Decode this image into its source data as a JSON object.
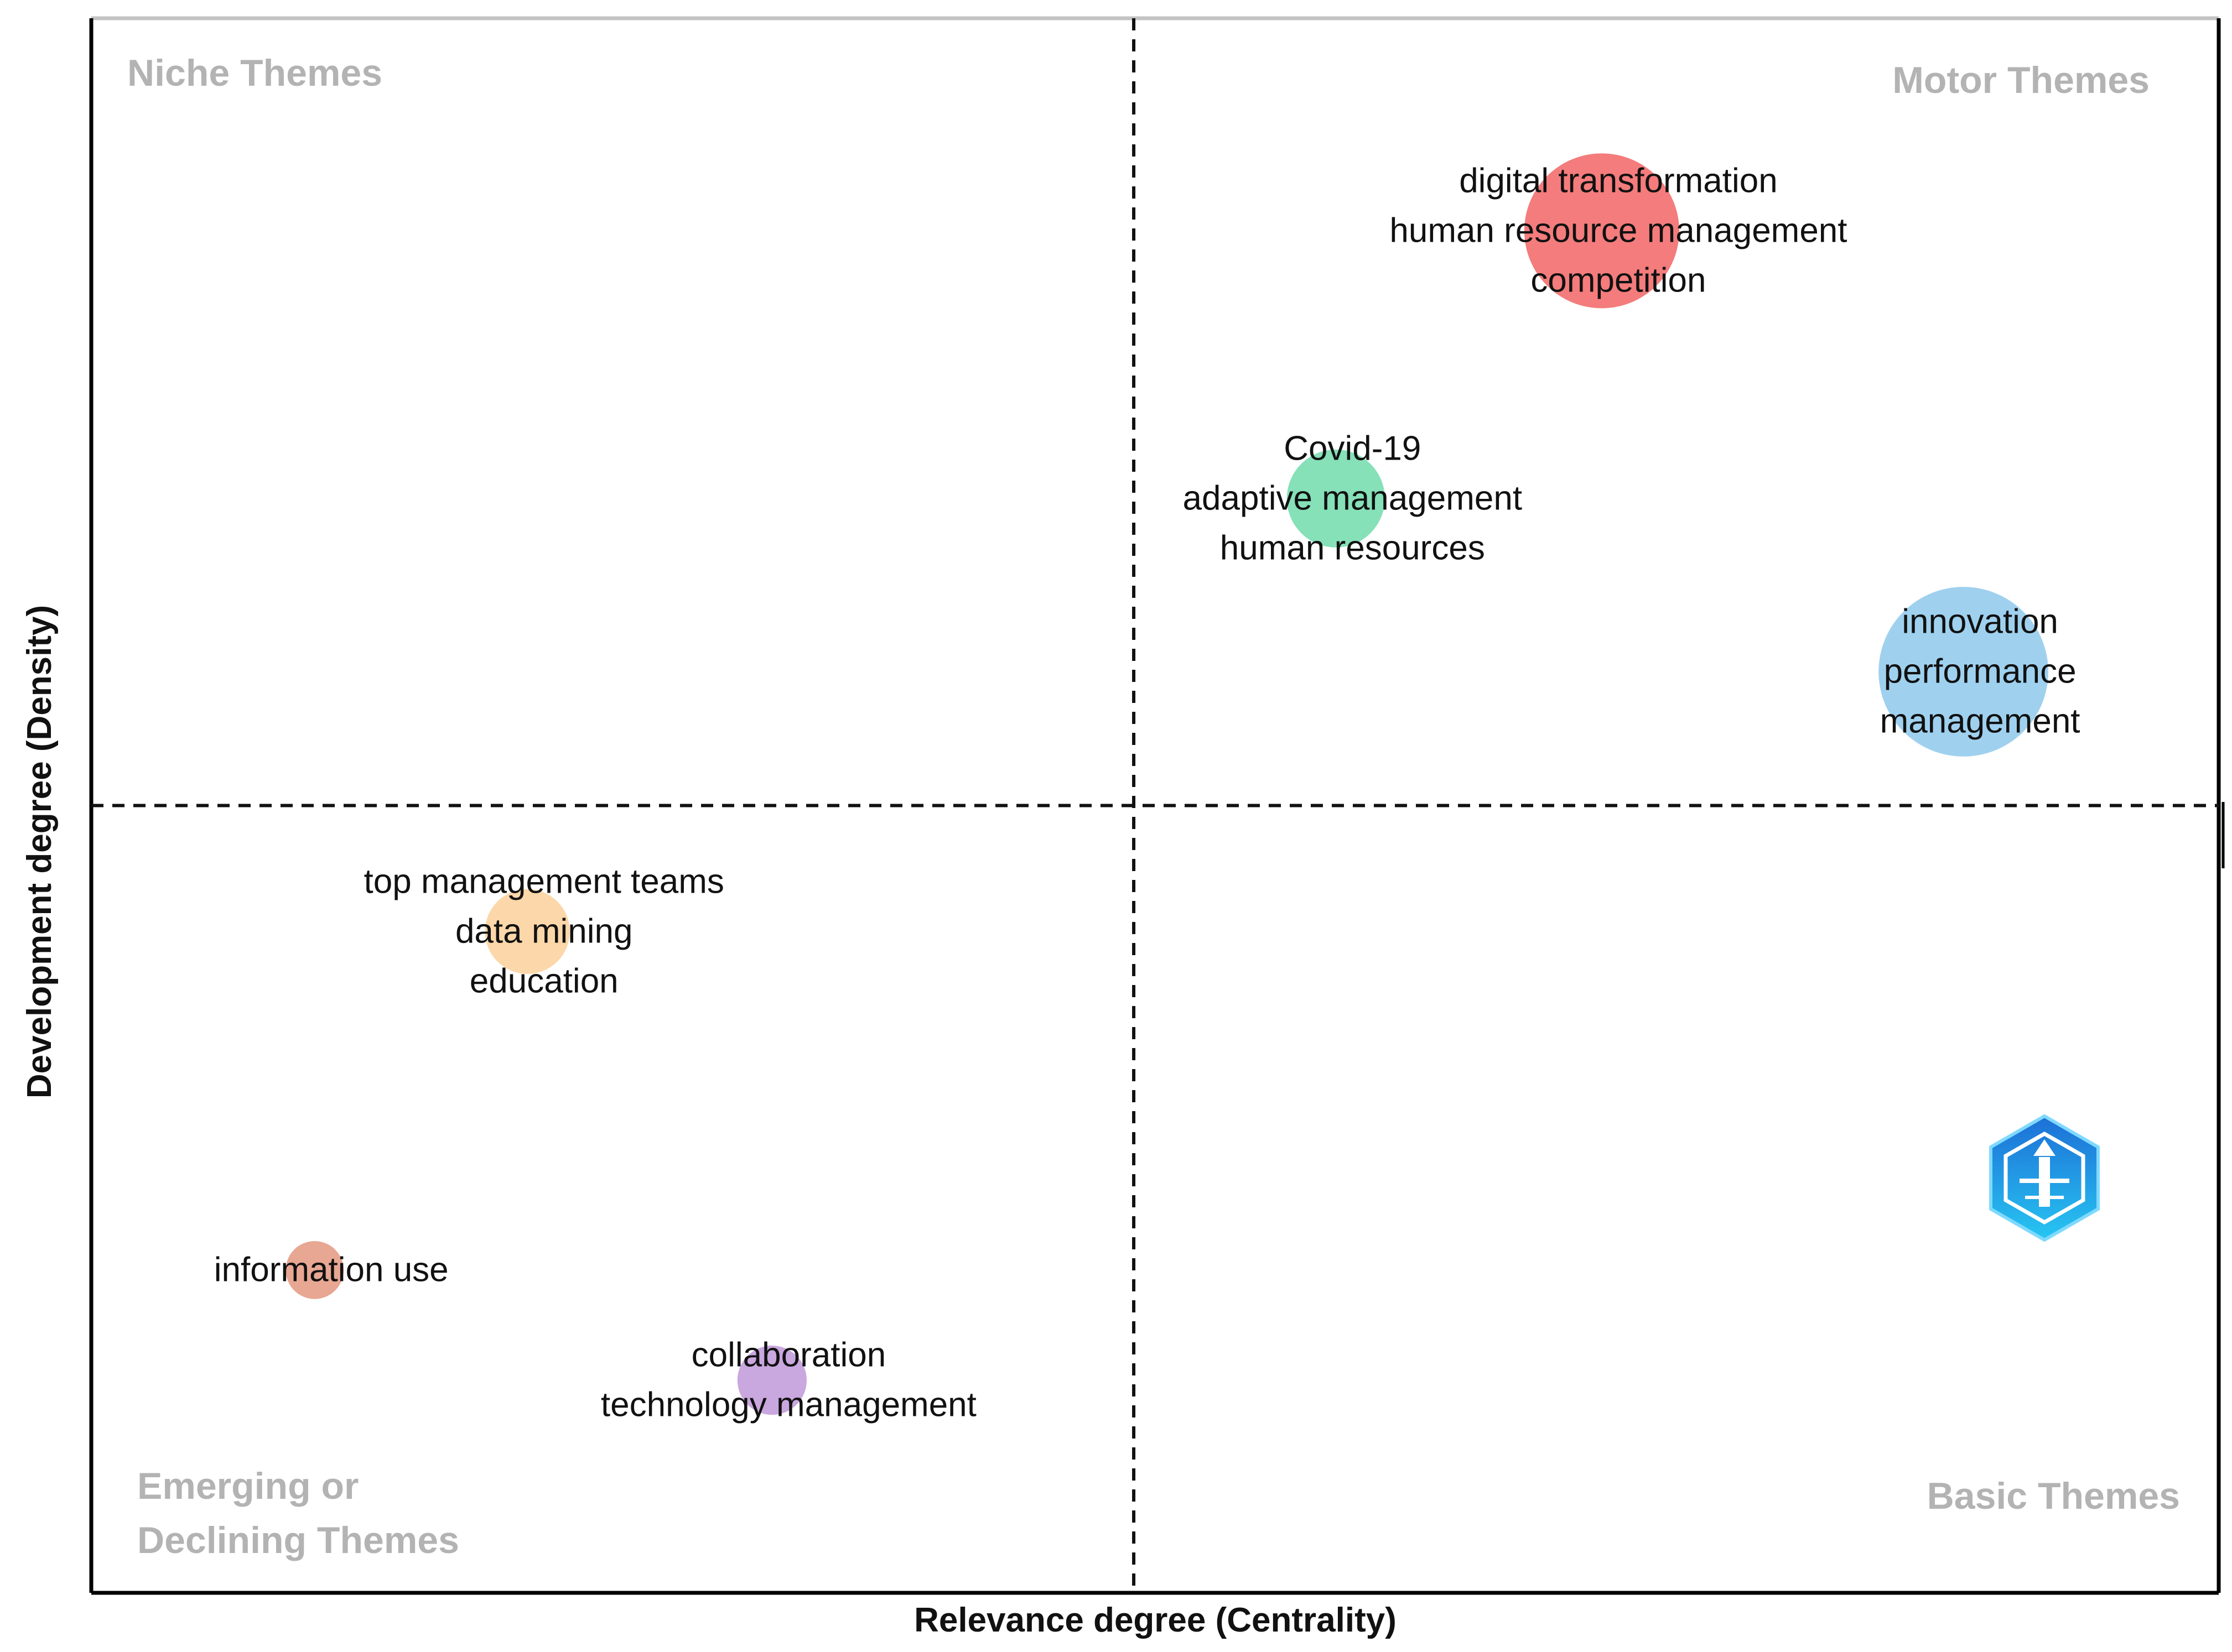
{
  "chart_data": {
    "type": "scatter",
    "subtype": "thematic-map",
    "xlabel": "Relevance degree (Centrality)",
    "ylabel": "Development degree (Density)",
    "xlim": [
      0,
      100
    ],
    "ylim": [
      0,
      100
    ],
    "x_divider": 49,
    "y_divider": 50,
    "grid": false,
    "quadrants": [
      {
        "name": "Niche Themes",
        "lines": [
          "Niche Themes"
        ],
        "position": "top-left"
      },
      {
        "name": "Motor Themes",
        "lines": [
          "Motor Themes"
        ],
        "position": "top-right"
      },
      {
        "name": "Emerging or Declining Themes",
        "lines": [
          "Emerging or",
          "Declining Themes"
        ],
        "position": "bottom-left"
      },
      {
        "name": "Basic Themes",
        "lines": [
          "Basic Themes"
        ],
        "position": "bottom-right"
      }
    ],
    "series": [
      {
        "name": "digital transformation",
        "x": 71,
        "y": 86.5,
        "size": 100,
        "color": "#f47c7c",
        "labels": [
          "digital transformation",
          "human resource management",
          "competition"
        ]
      },
      {
        "name": "Covid-19",
        "x": 58.5,
        "y": 69.5,
        "size": 40,
        "color": "#86e0b8",
        "labels": [
          "Covid-19",
          "adaptive management",
          "human resources"
        ]
      },
      {
        "name": "innovation",
        "x": 88,
        "y": 58.5,
        "size": 120,
        "color": "#9fd1ef",
        "labels": [
          "innovation",
          "performance",
          "management"
        ]
      },
      {
        "name": "top management teams",
        "x": 20.5,
        "y": 42,
        "size": 30,
        "color": "#fcd7a9",
        "labels": [
          "top management teams",
          "data mining",
          "education"
        ]
      },
      {
        "name": "information use",
        "x": 10.5,
        "y": 20.5,
        "size": 14,
        "color": "#e8a793",
        "labels": [
          "information use"
        ]
      },
      {
        "name": "collaboration",
        "x": 32,
        "y": 13.5,
        "size": 20,
        "color": "#c9a7df",
        "labels": [
          "collaboration",
          "technology management"
        ]
      }
    ]
  },
  "watermark": {
    "icon": "hexagon-logo-icon"
  }
}
